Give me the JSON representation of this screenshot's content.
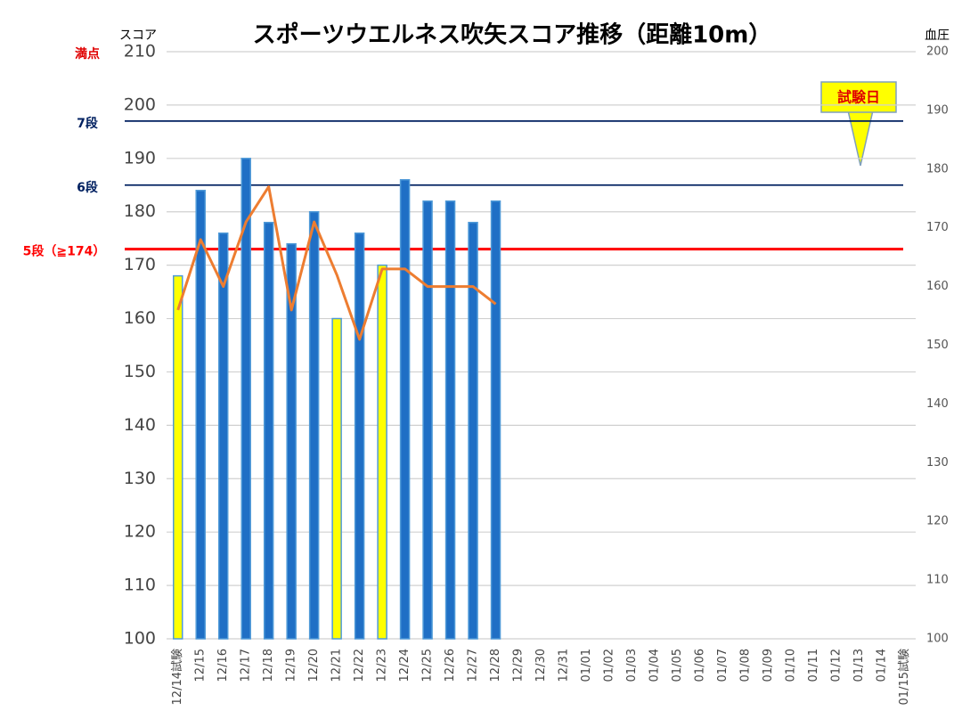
{
  "chart_data": {
    "type": "bar",
    "title": "スポーツウエルネス吹矢スコア推移（距離10m）",
    "y_label": "スコア",
    "y2_label": "血圧",
    "categories": [
      "12/14試験",
      "12/15",
      "12/16",
      "12/17",
      "12/18",
      "12/19",
      "12/20",
      "12/21",
      "12/22",
      "12/23",
      "12/24",
      "12/25",
      "12/26",
      "12/27",
      "12/28",
      "12/29",
      "12/30",
      "12/31",
      "01/01",
      "01/02",
      "01/03",
      "01/04",
      "01/05",
      "01/06",
      "01/07",
      "01/08",
      "01/09",
      "01/10",
      "01/11",
      "01/12",
      "01/13",
      "01/14",
      "01/15試験"
    ],
    "series": [
      {
        "type": "bar",
        "color": "#1f6fc5",
        "colors": [
          "#ffff00",
          "#1f6fc5",
          "#1f6fc5",
          "#1f6fc5",
          "#1f6fc5",
          "#1f6fc5",
          "#1f6fc5",
          "#ffff00",
          "#1f6fc5",
          "#ffff00",
          "#1f6fc5",
          "#1f6fc5",
          "#1f6fc5",
          "#1f6fc5",
          "#1f6fc5",
          null,
          null,
          null,
          null,
          null,
          null,
          null,
          null,
          null,
          null,
          null,
          null,
          null,
          null,
          null,
          null,
          null,
          null
        ],
        "values": [
          168,
          184,
          176,
          190,
          178,
          174,
          180,
          160,
          176,
          170,
          186,
          182,
          182,
          178,
          182,
          null,
          null,
          null,
          null,
          null,
          null,
          null,
          null,
          null,
          null,
          null,
          null,
          null,
          null,
          null,
          null,
          null,
          null
        ]
      },
      {
        "type": "line",
        "axis": "y2",
        "color": "#ed7d31",
        "values": [
          156,
          168,
          160,
          171,
          177,
          156,
          171,
          162,
          151,
          163,
          163,
          160,
          160,
          160,
          157,
          null,
          null,
          null,
          null,
          null,
          null,
          null,
          null,
          null,
          null,
          null,
          null,
          null,
          null,
          null,
          null,
          null,
          null
        ]
      }
    ],
    "ylim": [
      100,
      210
    ],
    "yticks": [
      100,
      110,
      120,
      130,
      140,
      150,
      160,
      170,
      180,
      190,
      200,
      210
    ],
    "y2lim": [
      100,
      200
    ],
    "y2ticks": [
      100,
      110,
      120,
      130,
      140,
      150,
      160,
      170,
      180,
      190,
      200
    ],
    "grid": true,
    "reference_lines": [
      {
        "label": "満点",
        "value": 210,
        "color": "#e00000",
        "line": false
      },
      {
        "label": "7段",
        "value": 197,
        "color": "#002060",
        "line": true
      },
      {
        "label": "6段",
        "value": 185,
        "color": "#002060",
        "line": true
      },
      {
        "label": "5段（≧174）",
        "value": 173,
        "color": "#ff0000",
        "line": true
      }
    ],
    "callout": "試験日"
  }
}
